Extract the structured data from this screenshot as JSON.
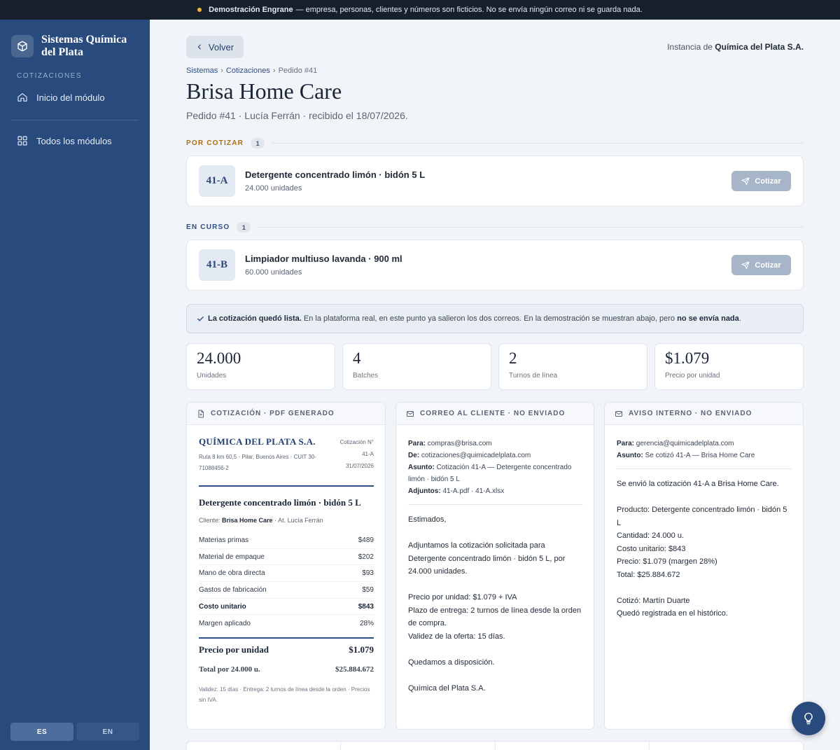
{
  "banner": {
    "strong": "Demostración Engrane",
    "text": "— empresa, personas, clientes y números son ficticios. No se envía ningún correo ni se guarda nada."
  },
  "sidebar": {
    "brand": "Sistemas Química del Plata",
    "section": "COTIZACIONES",
    "items": [
      {
        "label": "Inicio del módulo",
        "icon": "home-icon"
      },
      {
        "label": "Todos los módulos",
        "icon": "grid-icon"
      }
    ],
    "langs": [
      "ES",
      "EN"
    ]
  },
  "header": {
    "back_label": "Volver",
    "instance_prefix": "Instancia de",
    "instance_name": "Química del Plata S.A.",
    "breadcrumbs": [
      "Sistemas",
      "Cotizaciones",
      "Pedido #41"
    ],
    "title": "Brisa Home Care",
    "subtitle": "Pedido #41 · Lucía Ferrán · recibido el 18/07/2026."
  },
  "sections": [
    {
      "label": "POR COTIZAR",
      "count": "1",
      "color": "#b06d0c",
      "item": {
        "code": "41-A",
        "name": "Detergente concentrado limón · bidón 5 L",
        "qty": "24.000 unidades",
        "action": "Cotizar"
      }
    },
    {
      "label": "EN CURSO",
      "count": "1",
      "color": "#2d4f84",
      "item": {
        "code": "41-B",
        "name": "Limpiador multiuso lavanda · 900 ml",
        "qty": "60.000 unidades",
        "action": "Cotizar"
      }
    }
  ],
  "notice": {
    "strong1": "La cotización quedó lista.",
    "text1": "En la plataforma real, en este punto ya salieron los dos correos. En la demostración se muestran abajo, pero",
    "strong2": "no se envía nada",
    "text2": "."
  },
  "stats": [
    {
      "value": "24.000",
      "label": "Unidades"
    },
    {
      "value": "4",
      "label": "Batches"
    },
    {
      "value": "2",
      "label": "Turnos de línea"
    },
    {
      "value": "$1.079",
      "label": "Precio por unidad"
    }
  ],
  "pdf": {
    "header": "COTIZACIÓN · PDF GENERADO",
    "company": "QUÍMICA DEL PLATA S.A.",
    "address": "Ruta 8 km 60,5 · Pilar, Buenos Aires · CUIT 30-71088456-2",
    "no_label": "Cotización N°",
    "no_value": "41-A",
    "date": "31/07/2026",
    "product": "Detergente concentrado limón · bidón 5 L",
    "client_prefix": "Cliente:",
    "client_name": "Brisa Home Care",
    "client_suffix": "· At. Lucía Ferrán",
    "rows": [
      {
        "label": "Materias primas",
        "value": "$489",
        "strong": false
      },
      {
        "label": "Material de empaque",
        "value": "$202",
        "strong": false
      },
      {
        "label": "Mano de obra directa",
        "value": "$93",
        "strong": false
      },
      {
        "label": "Gastos de fabricación",
        "value": "$59",
        "strong": false
      },
      {
        "label": "Costo unitario",
        "value": "$843",
        "strong": true
      },
      {
        "label": "Margen aplicado",
        "value": "28%",
        "strong": false
      }
    ],
    "price_label": "Precio por unidad",
    "price_value": "$1.079",
    "total_label": "Total por 24.000 u.",
    "total_value": "$25.884.672",
    "footer": "Validez: 15 días · Entrega: 2 turnos de línea desde la orden · Precios sin IVA."
  },
  "client_mail": {
    "header": "CORREO AL CLIENTE · NO ENVIADO",
    "fields": [
      {
        "label": "Para:",
        "value": "compras@brisa.com"
      },
      {
        "label": "De:",
        "value": "cotizaciones@quimicadelplata.com"
      },
      {
        "label": "Asunto:",
        "value": "Cotización 41-A — Detergente concentrado limón · bidón 5 L"
      },
      {
        "label": "Adjuntos:",
        "value": "41-A.pdf · 41-A.xlsx"
      }
    ],
    "paragraphs": [
      "Estimados,",
      "Adjuntamos la cotización solicitada para Detergente concentrado limón · bidón 5 L, por 24.000 unidades.",
      "Precio por unidad: $1.079 + IVA\nPlazo de entrega: 2 turnos de línea desde la orden de compra.\nValidez de la oferta: 15 días.",
      "Quedamos a disposición.",
      "Química del Plata S.A."
    ]
  },
  "internal_mail": {
    "header": "AVISO INTERNO · NO ENVIADO",
    "fields": [
      {
        "label": "Para:",
        "value": "gerencia@quimicadelplata.com"
      },
      {
        "label": "Asunto:",
        "value": "Se cotizó 41-A — Brisa Home Care"
      }
    ],
    "paragraphs": [
      "Se envió la cotización 41-A a Brisa Home Care.",
      "Producto: Detergente concentrado limón · bidón 5 L\nCantidad: 24.000 u.\nCosto unitario: $843\nPrecio: $1.079 (margen 28%)\nTotal: $25.884.672",
      "Cotizó: Martín Duarte\nQuedó registrada en el histórico."
    ]
  },
  "icons": {
    "brand": "box-icon",
    "help": "lightbulb-icon"
  },
  "colors": {
    "sidebar": "#284a7c",
    "accent": "#2d4f84",
    "banner": "#16202d",
    "por_cotizar": "#b06d0c",
    "help_button": "#284a7c"
  }
}
